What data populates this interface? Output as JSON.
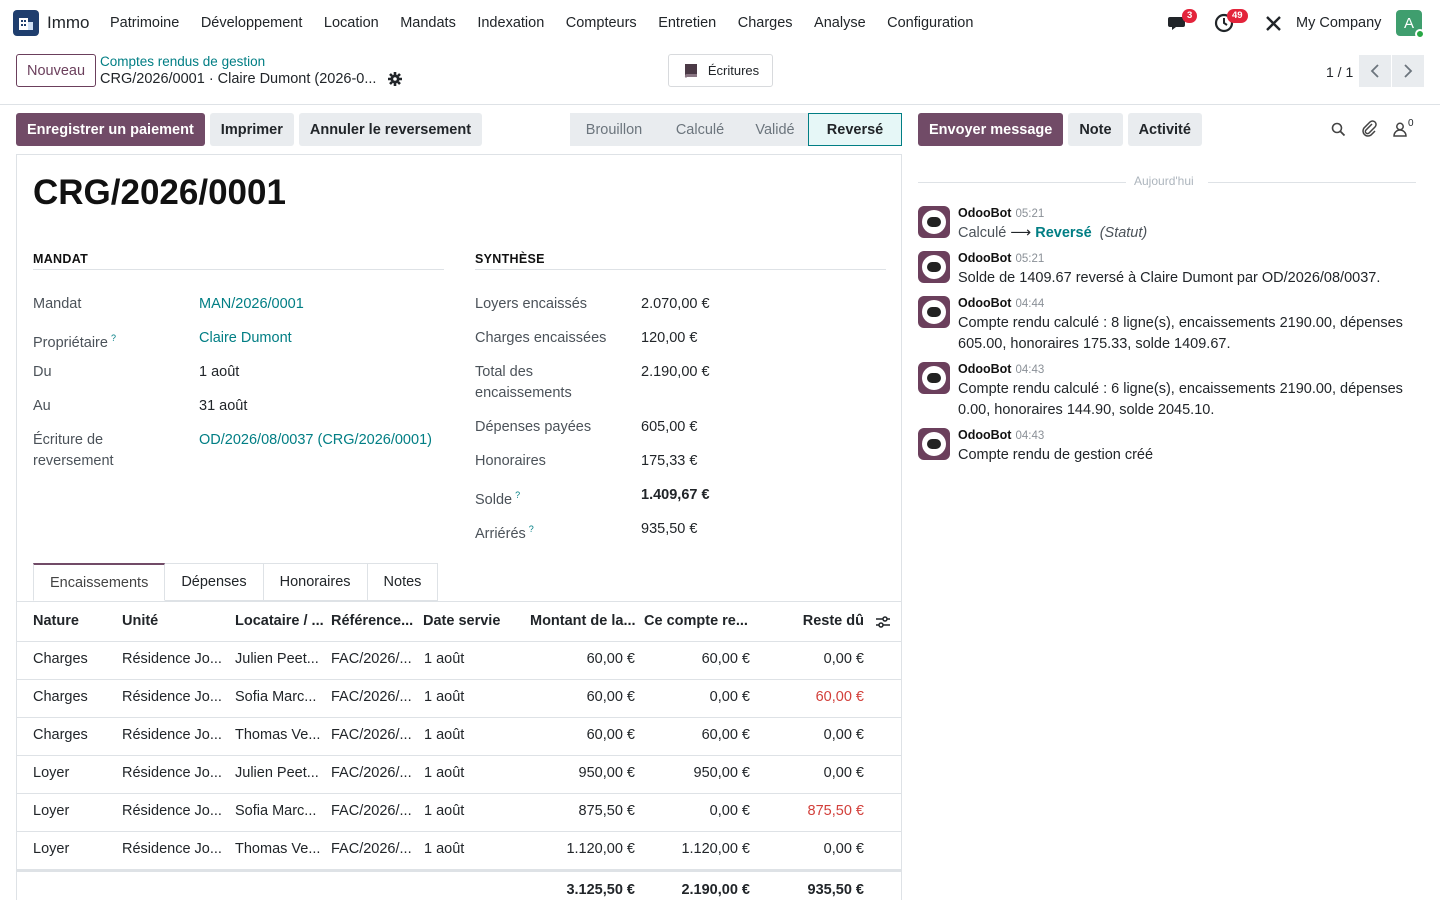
{
  "app": {
    "name": "Immo",
    "company": "My Company",
    "avatar_letter": "A"
  },
  "menu": [
    "Patrimoine",
    "Développement",
    "Location",
    "Mandats",
    "Indexation",
    "Compteurs",
    "Entretien",
    "Charges",
    "Analyse",
    "Configuration"
  ],
  "systray": {
    "messages_count": "3",
    "activities_count": "49"
  },
  "control": {
    "new_label": "Nouveau",
    "breadcrumb_parent": "Comptes rendus de gestion",
    "breadcrumb_current": "CRG/2026/0001 · Claire Dumont (2026-0...",
    "ecritures_label": "Écritures",
    "pager": "1 / 1"
  },
  "actions": [
    "Enregistrer un paiement",
    "Imprimer",
    "Annuler le reversement"
  ],
  "statusbar": [
    "Brouillon",
    "Calculé",
    "Validé",
    "Reversé"
  ],
  "record": {
    "title": "CRG/2026/0001",
    "group_mandat": "MANDAT",
    "group_synthese": "SYNTHÈSE",
    "mandat_fields": [
      {
        "label": "Mandat",
        "value": "MAN/2026/0001"
      },
      {
        "label": "Propriétaire",
        "value": "Claire Dumont"
      },
      {
        "label": "Du",
        "value": "1 août"
      },
      {
        "label": "Au",
        "value": "31 août"
      },
      {
        "label": "Écriture de reversement",
        "value": "OD/2026/08/0037 (CRG/2026/0001)"
      }
    ],
    "synthese_fields": [
      {
        "label": "Loyers encaissés",
        "value": "2.070,00 €"
      },
      {
        "label": "Charges encaissées",
        "value": "120,00 €"
      },
      {
        "label": "Total des encaissements",
        "value": "2.190,00 €"
      },
      {
        "label": "Dépenses payées",
        "value": "605,00 €"
      },
      {
        "label": "Honoraires",
        "value": "175,33 €"
      },
      {
        "label": "Solde",
        "value": "1.409,67 €"
      },
      {
        "label": "Arriérés",
        "value": "935,50 €"
      }
    ]
  },
  "tabs": [
    "Encaissements",
    "Dépenses",
    "Honoraires",
    "Notes"
  ],
  "table": {
    "headers": [
      "Nature",
      "Unité",
      "Locataire / ...",
      "Référence...",
      "Date servie",
      "Montant de la...",
      "Ce compte re...",
      "Reste dû"
    ],
    "rows": [
      [
        "Charges",
        "Résidence Jo...",
        "Julien Peet...",
        "FAC/2026/...",
        "1 août",
        "60,00 €",
        "60,00 €",
        "0,00 €"
      ],
      [
        "Charges",
        "Résidence Jo...",
        "Sofia Marc...",
        "FAC/2026/...",
        "1 août",
        "60,00 €",
        "0,00 €",
        "60,00 €"
      ],
      [
        "Charges",
        "Résidence Jo...",
        "Thomas Ve...",
        "FAC/2026/...",
        "1 août",
        "60,00 €",
        "60,00 €",
        "0,00 €"
      ],
      [
        "Loyer",
        "Résidence Jo...",
        "Julien Peet...",
        "FAC/2026/...",
        "1 août",
        "950,00 €",
        "950,00 €",
        "0,00 €"
      ],
      [
        "Loyer",
        "Résidence Jo...",
        "Sofia Marc...",
        "FAC/2026/...",
        "1 août",
        "875,50 €",
        "0,00 €",
        "875,50 €"
      ],
      [
        "Loyer",
        "Résidence Jo...",
        "Thomas Ve...",
        "FAC/2026/...",
        "1 août",
        "1.120,00 €",
        "1.120,00 €",
        "0,00 €"
      ]
    ],
    "totals": [
      "3.125,50 €",
      "2.190,00 €",
      "935,50 €"
    ]
  },
  "chatter": {
    "buttons": [
      "Envoyer message",
      "Note",
      "Activité"
    ],
    "followers_count": "0",
    "today_label": "Aujourd'hui",
    "messages": [
      {
        "author": "OdooBot",
        "time": "05:21",
        "old": "Calculé",
        "new": "Reversé",
        "field": "(Statut)"
      },
      {
        "author": "OdooBot",
        "time": "05:21",
        "body": "Solde de 1409.67 reversé à Claire Dumont par OD/2026/08/0037."
      },
      {
        "author": "OdooBot",
        "time": "04:44",
        "body": "Compte rendu calculé : 8 ligne(s), encaissements 2190.00, dépenses 605.00, honoraires 175.33, solde 1409.67."
      },
      {
        "author": "OdooBot",
        "time": "04:43",
        "body": "Compte rendu calculé : 6 ligne(s), encaissements 2190.00, dépenses 0.00, honoraires 144.90, solde 2045.10."
      },
      {
        "author": "OdooBot",
        "time": "04:43",
        "body": "Compte rendu de gestion créé"
      }
    ]
  },
  "colors": {
    "primary": "#714b67",
    "link": "#017e84",
    "danger": "#d23f3a"
  }
}
